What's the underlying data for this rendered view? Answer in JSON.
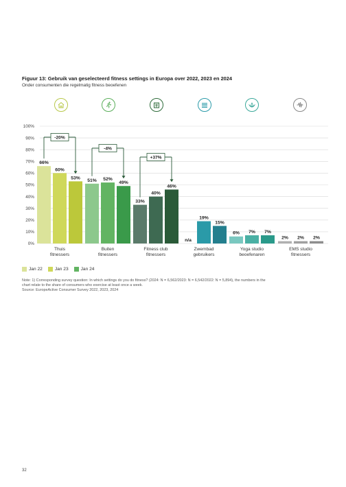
{
  "figure": {
    "title": "Figuur 13: Gebruik van geselecteerd fitness settings in Europa over 2022, 2023 en 2024",
    "subtitle": "Onder consumenten die regelmatig fitness beoefenen"
  },
  "icons": [
    {
      "name": "home-fitness-icon",
      "color": "#b8c84a"
    },
    {
      "name": "outdoor-runner-icon",
      "color": "#5aae5a"
    },
    {
      "name": "fitness-club-icon",
      "color": "#2e6b3a"
    },
    {
      "name": "swimming-pool-icon",
      "color": "#2a9aa8"
    },
    {
      "name": "yoga-lotus-icon",
      "color": "#3aa89a"
    },
    {
      "name": "ems-pulse-icon",
      "color": "#888888"
    }
  ],
  "chart_data": {
    "type": "bar",
    "ylim": [
      0,
      100
    ],
    "yticks": [
      "0%",
      "10%",
      "20%",
      "30%",
      "40%",
      "50%",
      "60%",
      "70%",
      "80%",
      "90%",
      "100%"
    ],
    "grid": true,
    "categories": [
      "Thuis fitnessers",
      "Buiten fitnessers",
      "Fitness club fitnessers",
      "Zwembad gebruikers",
      "Yoga studio beoefenaren",
      "EMS studio fitnessers"
    ],
    "category_labels": [
      [
        "Thuis",
        "fitnessers"
      ],
      [
        "Buiten",
        "fitnessers"
      ],
      [
        "Fitness club",
        "fitnessers"
      ],
      [
        "Zwembad",
        "gebruikers"
      ],
      [
        "Yoga studio",
        "beoefenaren"
      ],
      [
        "EMS studio",
        "fitnessers"
      ]
    ],
    "series": [
      {
        "name": "Jan 22",
        "values": [
          66,
          51,
          33,
          null,
          6,
          2
        ],
        "labels": [
          "66%",
          "51%",
          "33%",
          "n/a",
          "6%",
          "2%"
        ]
      },
      {
        "name": "Jan 23",
        "values": [
          60,
          52,
          40,
          19,
          7,
          2
        ],
        "labels": [
          "60%",
          "52%",
          "40%",
          "19%",
          "7%",
          "2%"
        ]
      },
      {
        "name": "Jan 24",
        "values": [
          53,
          49,
          46,
          15,
          7,
          2
        ],
        "labels": [
          "53%",
          "49%",
          "46%",
          "15%",
          "7%",
          "2%"
        ]
      }
    ],
    "colors": [
      [
        "#dbe39a",
        "#cfd85a",
        "#bcc83a"
      ],
      [
        "#8cc88c",
        "#62b462",
        "#3a9a4a"
      ],
      [
        "#5a7a6a",
        "#3e6a52",
        "#2a5a38"
      ],
      [
        "#ffffff",
        "#2a9aa8",
        "#247f8e"
      ],
      [
        "#7ac8c0",
        "#4ab0a4",
        "#2a9a8a"
      ],
      [
        "#b0b0b0",
        "#a0a0a0",
        "#8e8e8e"
      ]
    ],
    "annotations": [
      {
        "category": 0,
        "label": "-20%"
      },
      {
        "category": 1,
        "label": "-4%"
      },
      {
        "category": 2,
        "label": "+37%"
      }
    ]
  },
  "legend": [
    {
      "label": "Jan 22",
      "color": "#dbe39a"
    },
    {
      "label": "Jan 23",
      "color": "#cfd85a"
    },
    {
      "label": "Jan 24",
      "color": "#62b462"
    }
  ],
  "note": {
    "line1": "Note: 1) Corresponding survey question: In which settings do you do fitness? (2024: N = 6,562/2023: N = 6,542/2022: N = 5,894), the numbers in the",
    "line2": "chart relate to the share of consumers who exercise at least once a week.",
    "source": "Source: EuropeActive Consumer Survey 2022, 2023, 2024"
  },
  "page_number": "32"
}
